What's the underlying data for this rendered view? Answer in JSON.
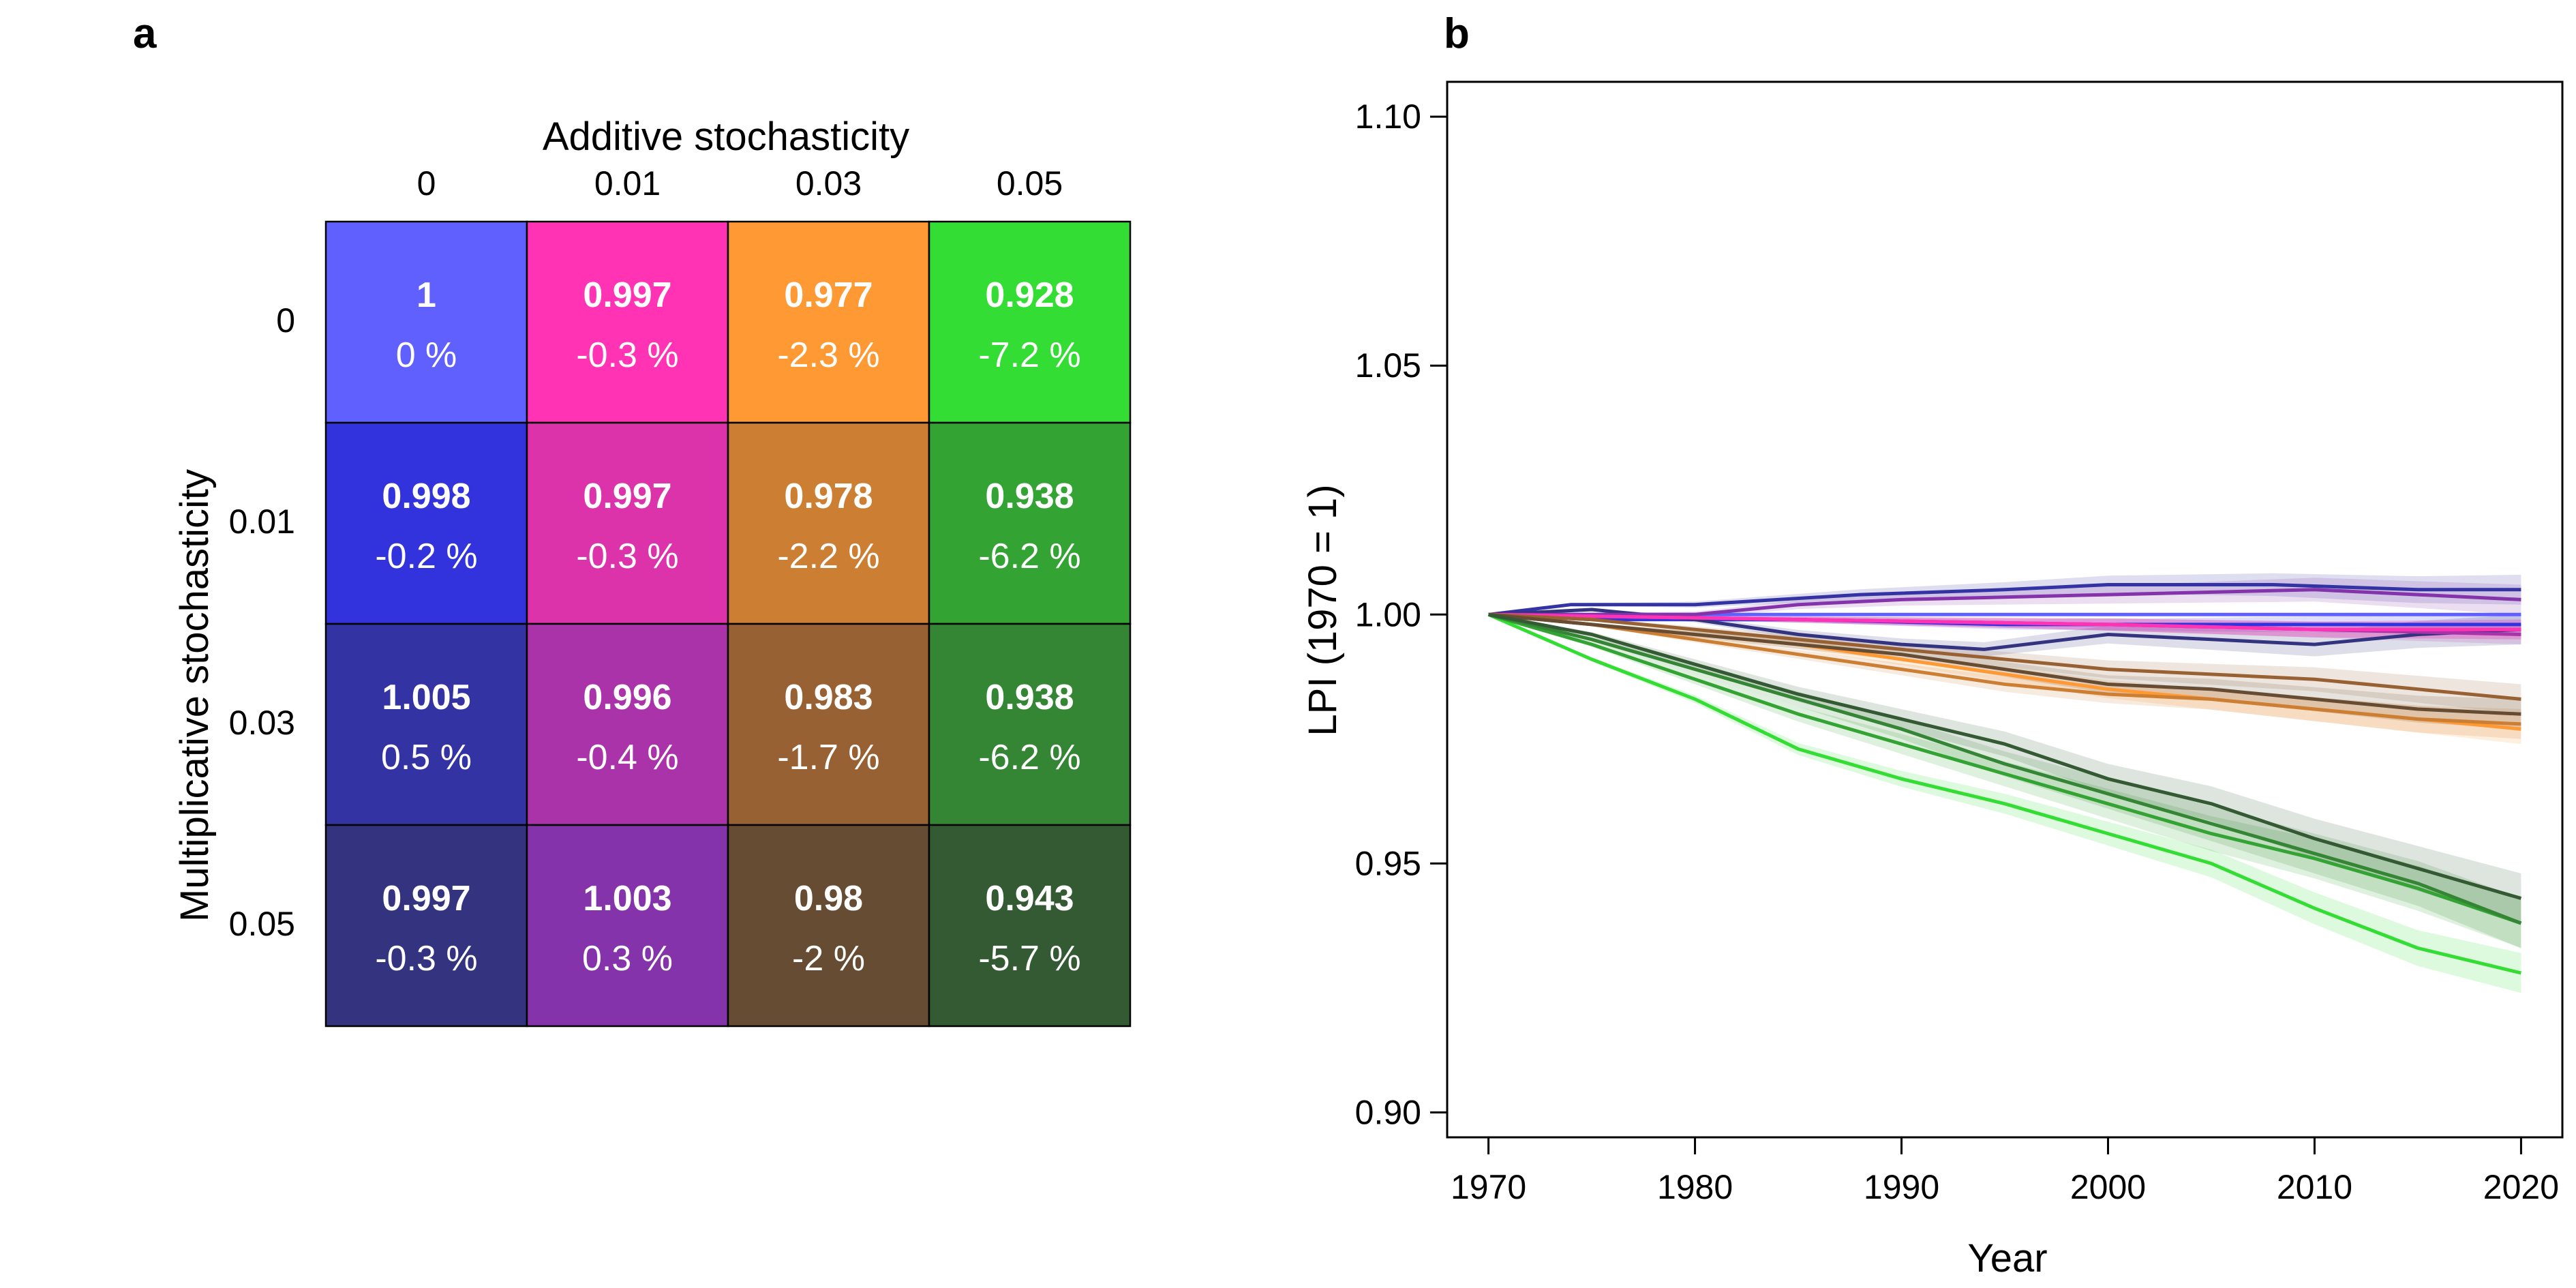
{
  "panels": {
    "a": {
      "letter": "a"
    },
    "b": {
      "letter": "b"
    }
  },
  "chart_data": [
    {
      "type": "heatmap",
      "panel": "a",
      "xlabel": "Additive stochasticity",
      "ylabel": "Multiplicative stochasticity",
      "x_categories": [
        "0",
        "0.01",
        "0.03",
        "0.05"
      ],
      "y_categories": [
        "0",
        "0.01",
        "0.03",
        "0.05"
      ],
      "values": [
        [
          1,
          0.997,
          0.977,
          0.928
        ],
        [
          0.998,
          0.997,
          0.978,
          0.938
        ],
        [
          1.005,
          0.996,
          0.983,
          0.938
        ],
        [
          0.997,
          1.003,
          0.98,
          0.943
        ]
      ],
      "value_labels": [
        [
          "1",
          "0.997",
          "0.977",
          "0.928"
        ],
        [
          "0.998",
          "0.997",
          "0.978",
          "0.938"
        ],
        [
          "1.005",
          "0.996",
          "0.983",
          "0.938"
        ],
        [
          "0.997",
          "1.003",
          "0.98",
          "0.943"
        ]
      ],
      "change_labels": [
        [
          "0 %",
          "-0.3 %",
          "-2.3 %",
          "-7.2 %"
        ],
        [
          "-0.2 %",
          "-0.3 %",
          "-2.2 %",
          "-6.2 %"
        ],
        [
          "0.5 %",
          "-0.4 %",
          "-1.7 %",
          "-6.2 %"
        ],
        [
          "-0.3 %",
          "0.3 %",
          "-2 %",
          "-5.7 %"
        ]
      ],
      "cell_colors": [
        [
          "#6060ff",
          "#ff33b4",
          "#ff9933",
          "#33dd33"
        ],
        [
          "#3333dd",
          "#dd33aa",
          "#cc7f33",
          "#33a333"
        ],
        [
          "#3433a4",
          "#aa33aa",
          "#986133",
          "#348634"
        ],
        [
          "#333380",
          "#8433aa",
          "#664c33",
          "#335a33"
        ]
      ]
    },
    {
      "type": "line",
      "panel": "b",
      "xlabel": "Year",
      "ylabel": "LPI (1970 = 1)",
      "xlim": [
        1968,
        2022
      ],
      "ylim": [
        0.895,
        1.107
      ],
      "xticks": [
        1970,
        1980,
        1990,
        2000,
        2010,
        2020
      ],
      "yticks": [
        0.9,
        0.95,
        1.0,
        1.05,
        1.1
      ],
      "ytick_labels": [
        "0.90",
        "0.95",
        "1.00",
        "1.05",
        "1.10"
      ],
      "grid": false,
      "series": [
        {
          "color": "#6060ff",
          "x": [
            1970,
            2020
          ],
          "y": [
            1.0,
            1.0
          ],
          "band": 0
        },
        {
          "color": "#3333dd",
          "x": [
            1970,
            1975,
            1985,
            1995,
            2005,
            2015,
            2020
          ],
          "y": [
            1.0,
            0.999,
            0.999,
            0.998,
            0.998,
            0.998,
            0.998
          ],
          "band": 0.002
        },
        {
          "color": "#3433a4",
          "x": [
            1970,
            1974,
            1980,
            1988,
            1995,
            2000,
            2008,
            2015,
            2020
          ],
          "y": [
            1.0,
            1.002,
            1.002,
            1.004,
            1.005,
            1.006,
            1.006,
            1.005,
            1.005
          ],
          "band": 0.003
        },
        {
          "color": "#333380",
          "x": [
            1970,
            1975,
            1980,
            1985,
            1990,
            1994,
            2000,
            2005,
            2010,
            2015,
            2020
          ],
          "y": [
            1.0,
            1.001,
            0.999,
            0.996,
            0.994,
            0.993,
            0.996,
            0.995,
            0.994,
            0.996,
            0.997
          ],
          "band": 0.003
        },
        {
          "color": "#8433aa",
          "x": [
            1970,
            1980,
            1985,
            1990,
            2000,
            2010,
            2020
          ],
          "y": [
            1.0,
            1.0,
            1.002,
            1.003,
            1.004,
            1.005,
            1.003
          ],
          "band": 0.003
        },
        {
          "color": "#aa33aa",
          "x": [
            1970,
            1985,
            2000,
            2010,
            2020
          ],
          "y": [
            1.0,
            0.999,
            0.998,
            0.997,
            0.996
          ],
          "band": 0.002
        },
        {
          "color": "#dd33aa",
          "x": [
            1970,
            1985,
            2000,
            2010,
            2020
          ],
          "y": [
            1.0,
            0.999,
            0.998,
            0.997,
            0.997
          ],
          "band": 0.002
        },
        {
          "color": "#ff33b4",
          "x": [
            1970,
            1985,
            2000,
            2010,
            2020
          ],
          "y": [
            1.0,
            0.999,
            0.998,
            0.997,
            0.997
          ],
          "band": 0.002
        },
        {
          "color": "#ff9933",
          "x": [
            1970,
            1975,
            1980,
            1985,
            1990,
            1995,
            2000,
            2005,
            2010,
            2015,
            2020
          ],
          "y": [
            1.0,
            0.998,
            0.996,
            0.994,
            0.991,
            0.988,
            0.985,
            0.983,
            0.981,
            0.979,
            0.977
          ],
          "band": 0.003
        },
        {
          "color": "#cc7f33",
          "x": [
            1970,
            1975,
            1980,
            1985,
            1990,
            1995,
            2000,
            2005,
            2010,
            2015,
            2020
          ],
          "y": [
            1.0,
            0.998,
            0.995,
            0.992,
            0.989,
            0.986,
            0.984,
            0.983,
            0.981,
            0.979,
            0.978
          ],
          "band": 0.003
        },
        {
          "color": "#986133",
          "x": [
            1970,
            1975,
            1980,
            1985,
            1990,
            1995,
            2000,
            2005,
            2010,
            2015,
            2020
          ],
          "y": [
            1.0,
            0.999,
            0.997,
            0.995,
            0.993,
            0.991,
            0.989,
            0.988,
            0.987,
            0.985,
            0.983
          ],
          "band": 0.003
        },
        {
          "color": "#664c33",
          "x": [
            1970,
            1975,
            1980,
            1985,
            1990,
            1995,
            2000,
            2005,
            2010,
            2015,
            2020
          ],
          "y": [
            1.0,
            0.998,
            0.996,
            0.994,
            0.992,
            0.989,
            0.986,
            0.985,
            0.983,
            0.981,
            0.98
          ],
          "band": 0.003
        },
        {
          "color": "#33dd33",
          "x": [
            1970,
            1975,
            1980,
            1985,
            1990,
            1995,
            2000,
            2005,
            2010,
            2015,
            2020
          ],
          "y": [
            1.0,
            0.991,
            0.983,
            0.973,
            0.967,
            0.962,
            0.956,
            0.95,
            0.941,
            0.933,
            0.928
          ],
          "band": 0.004
        },
        {
          "color": "#33a333",
          "x": [
            1970,
            1975,
            1980,
            1985,
            1990,
            1995,
            2000,
            2005,
            2010,
            2015,
            2020
          ],
          "y": [
            1.0,
            0.994,
            0.987,
            0.98,
            0.974,
            0.968,
            0.962,
            0.956,
            0.951,
            0.945,
            0.938
          ],
          "band": 0.005
        },
        {
          "color": "#348634",
          "x": [
            1970,
            1975,
            1980,
            1985,
            1990,
            1995,
            2000,
            2005,
            2010,
            2015,
            2020
          ],
          "y": [
            1.0,
            0.995,
            0.989,
            0.983,
            0.977,
            0.97,
            0.964,
            0.958,
            0.952,
            0.946,
            0.938
          ],
          "band": 0.005
        },
        {
          "color": "#335a33",
          "x": [
            1970,
            1975,
            1980,
            1985,
            1990,
            1995,
            2000,
            2005,
            2010,
            2015,
            2020
          ],
          "y": [
            1.0,
            0.996,
            0.99,
            0.984,
            0.979,
            0.974,
            0.967,
            0.962,
            0.955,
            0.949,
            0.943
          ],
          "band": 0.005
        }
      ]
    }
  ]
}
